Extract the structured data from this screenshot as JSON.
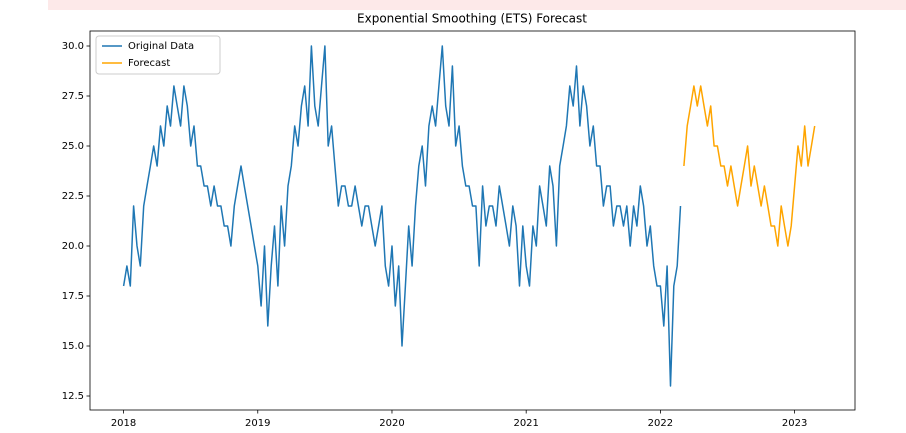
{
  "chart_data": {
    "type": "line",
    "title": "Exponential Smoothing (ETS) Forecast",
    "legend": "upper left",
    "xlim": [
      2017.75,
      2023.45
    ],
    "xticks": [
      2018,
      2019,
      2020,
      2021,
      2022,
      2023
    ],
    "ylim": [
      11.8,
      30.75
    ],
    "yticks": [
      {
        "value": 12.5,
        "label": "12.5"
      },
      {
        "value": 15,
        "label": "15.0"
      },
      {
        "value": 17.5,
        "label": "17.5"
      },
      {
        "value": 20,
        "label": "20.0"
      },
      {
        "value": 22.5,
        "label": "22.5"
      },
      {
        "value": 25,
        "label": "25.0"
      },
      {
        "value": 27.5,
        "label": "27.5"
      },
      {
        "value": 30,
        "label": "30.0"
      }
    ],
    "series": [
      {
        "name": "Original Data",
        "color": "#1f77b4",
        "x": [
          2018,
          2018.025,
          2018.05,
          2018.075,
          2018.1,
          2018.125,
          2018.15,
          2018.175,
          2018.2,
          2018.225,
          2018.25,
          2018.275,
          2018.3,
          2018.325,
          2018.35,
          2018.375,
          2018.4,
          2018.425,
          2018.45,
          2018.475,
          2018.5,
          2018.525,
          2018.55,
          2018.575,
          2018.6,
          2018.625,
          2018.65,
          2018.675,
          2018.7,
          2018.725,
          2018.75,
          2018.775,
          2018.8,
          2018.825,
          2018.85,
          2018.875,
          2018.9,
          2018.925,
          2018.95,
          2018.975,
          2019,
          2019.025,
          2019.05,
          2019.075,
          2019.1,
          2019.125,
          2019.15,
          2019.175,
          2019.2,
          2019.225,
          2019.25,
          2019.275,
          2019.3,
          2019.325,
          2019.35,
          2019.375,
          2019.4,
          2019.425,
          2019.45,
          2019.475,
          2019.5,
          2019.525,
          2019.55,
          2019.575,
          2019.6,
          2019.625,
          2019.65,
          2019.675,
          2019.7,
          2019.725,
          2019.75,
          2019.775,
          2019.8,
          2019.825,
          2019.85,
          2019.875,
          2019.9,
          2019.925,
          2019.95,
          2019.975,
          2020,
          2020.025,
          2020.05,
          2020.075,
          2020.1,
          2020.125,
          2020.15,
          2020.175,
          2020.2,
          2020.225,
          2020.25,
          2020.275,
          2020.3,
          2020.325,
          2020.35,
          2020.375,
          2020.4,
          2020.425,
          2020.45,
          2020.475,
          2020.5,
          2020.525,
          2020.55,
          2020.575,
          2020.6,
          2020.625,
          2020.65,
          2020.675,
          2020.7,
          2020.725,
          2020.75,
          2020.775,
          2020.8,
          2020.825,
          2020.85,
          2020.875,
          2020.9,
          2020.925,
          2020.95,
          2020.975,
          2021,
          2021.025,
          2021.05,
          2021.075,
          2021.1,
          2021.125,
          2021.15,
          2021.175,
          2021.2,
          2021.225,
          2021.25,
          2021.275,
          2021.3,
          2021.325,
          2021.35,
          2021.375,
          2021.4,
          2021.425,
          2021.45,
          2021.475,
          2021.5,
          2021.525,
          2021.55,
          2021.575,
          2021.6,
          2021.625,
          2021.65,
          2021.675,
          2021.7,
          2021.725,
          2021.75,
          2021.775,
          2021.8,
          2021.825,
          2021.85,
          2021.875,
          2021.9,
          2021.925,
          2021.95,
          2021.975,
          2022,
          2022.025,
          2022.05,
          2022.075,
          2022.1,
          2022.125,
          2022.15
        ],
        "values": [
          18,
          19,
          18,
          22,
          20,
          19,
          22,
          23,
          24,
          25,
          24,
          26,
          25,
          27,
          26,
          28,
          27,
          26,
          28,
          27,
          25,
          26,
          24,
          24,
          23,
          23,
          22,
          23,
          22,
          22,
          21,
          21,
          20,
          22,
          23,
          24,
          23,
          22,
          21,
          20,
          19,
          17,
          20,
          16,
          19,
          21,
          18,
          22,
          20,
          23,
          24,
          26,
          25,
          27,
          28,
          26,
          30,
          27,
          26,
          28,
          30,
          25,
          26,
          24,
          22,
          23,
          23,
          22,
          22,
          23,
          22,
          21,
          22,
          22,
          21,
          20,
          21,
          22,
          19,
          18,
          20,
          17,
          19,
          15,
          18,
          21,
          19,
          22,
          24,
          25,
          23,
          26,
          27,
          26,
          28,
          30,
          27,
          26,
          29,
          25,
          26,
          24,
          23,
          23,
          22,
          22,
          19,
          23,
          21,
          22,
          22,
          21,
          23,
          22,
          21,
          20,
          22,
          21,
          18,
          21,
          19,
          18,
          21,
          20,
          23,
          22,
          21,
          24,
          23,
          20,
          24,
          25,
          26,
          28,
          27,
          29,
          26,
          28,
          27,
          25,
          26,
          24,
          24,
          22,
          23,
          23,
          21,
          22,
          22,
          21,
          22,
          20,
          22,
          21,
          23,
          22,
          20,
          21,
          19,
          18,
          18,
          16,
          19,
          13,
          18,
          19,
          22
        ]
      },
      {
        "name": "Forecast",
        "color": "#ffa500",
        "x": [
          2022.175,
          2022.2,
          2022.225,
          2022.25,
          2022.275,
          2022.3,
          2022.325,
          2022.35,
          2022.375,
          2022.4,
          2022.425,
          2022.45,
          2022.475,
          2022.5,
          2022.525,
          2022.55,
          2022.575,
          2022.6,
          2022.625,
          2022.65,
          2022.675,
          2022.7,
          2022.725,
          2022.75,
          2022.775,
          2022.8,
          2022.825,
          2022.85,
          2022.875,
          2022.9,
          2022.925,
          2022.95,
          2022.975,
          2023,
          2023.025,
          2023.05,
          2023.075,
          2023.1,
          2023.125,
          2023.15
        ],
        "values": [
          24,
          26,
          27,
          28,
          27,
          28,
          27,
          26,
          27,
          25,
          25,
          24,
          24,
          23,
          24,
          23,
          22,
          23,
          24,
          25,
          23,
          24,
          23,
          22,
          23,
          22,
          21,
          21,
          20,
          22,
          21,
          20,
          21,
          23,
          25,
          24,
          26,
          24,
          25,
          26
        ]
      }
    ]
  }
}
